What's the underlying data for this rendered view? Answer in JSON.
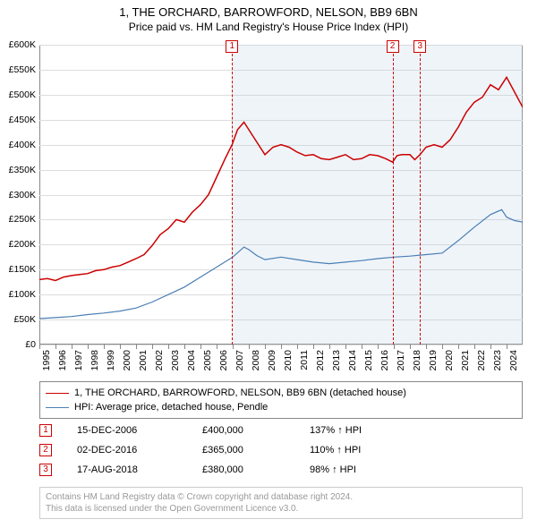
{
  "title": {
    "main": "1, THE ORCHARD, BARROWFORD, NELSON, BB9 6BN",
    "sub": "Price paid vs. HM Land Registry's House Price Index (HPI)"
  },
  "chart": {
    "type": "line",
    "background_color": "#ffffff",
    "grid_color": "#dddddd",
    "axis_color": "#888888",
    "x_start_year": 1995,
    "x_end_year": 2025,
    "ylim": [
      0,
      600000
    ],
    "ytick_step": 50000,
    "ytick_labels": [
      "£0",
      "£50K",
      "£100K",
      "£150K",
      "£200K",
      "£250K",
      "£300K",
      "£350K",
      "£400K",
      "£450K",
      "£500K",
      "£550K",
      "£600K"
    ],
    "xtick_years": [
      1995,
      1996,
      1997,
      1998,
      1999,
      2000,
      2001,
      2002,
      2003,
      2004,
      2005,
      2006,
      2007,
      2008,
      2009,
      2010,
      2011,
      2012,
      2013,
      2014,
      2015,
      2016,
      2017,
      2018,
      2019,
      2020,
      2021,
      2022,
      2023,
      2024
    ],
    "shade_color": "#b5cde3",
    "shade_start_year": 2006.96,
    "shade_end_year": 2025.3,
    "series": [
      {
        "name": "price_paid",
        "color": "#cc0000",
        "line_width": 1.5,
        "points": [
          [
            1995.0,
            130000
          ],
          [
            1995.5,
            132000
          ],
          [
            1996.0,
            128000
          ],
          [
            1996.5,
            135000
          ],
          [
            1997.0,
            138000
          ],
          [
            1997.5,
            140000
          ],
          [
            1998.0,
            142000
          ],
          [
            1998.5,
            148000
          ],
          [
            1999.0,
            150000
          ],
          [
            1999.5,
            155000
          ],
          [
            2000.0,
            158000
          ],
          [
            2000.5,
            165000
          ],
          [
            2001.0,
            172000
          ],
          [
            2001.5,
            180000
          ],
          [
            2002.0,
            198000
          ],
          [
            2002.5,
            220000
          ],
          [
            2003.0,
            232000
          ],
          [
            2003.5,
            250000
          ],
          [
            2004.0,
            245000
          ],
          [
            2004.5,
            265000
          ],
          [
            2005.0,
            280000
          ],
          [
            2005.5,
            300000
          ],
          [
            2006.0,
            335000
          ],
          [
            2006.5,
            370000
          ],
          [
            2006.96,
            400000
          ],
          [
            2007.3,
            430000
          ],
          [
            2007.7,
            445000
          ],
          [
            2008.0,
            430000
          ],
          [
            2008.5,
            405000
          ],
          [
            2009.0,
            380000
          ],
          [
            2009.5,
            395000
          ],
          [
            2010.0,
            400000
          ],
          [
            2010.5,
            395000
          ],
          [
            2011.0,
            385000
          ],
          [
            2011.5,
            378000
          ],
          [
            2012.0,
            380000
          ],
          [
            2012.5,
            372000
          ],
          [
            2013.0,
            370000
          ],
          [
            2013.5,
            375000
          ],
          [
            2014.0,
            380000
          ],
          [
            2014.5,
            370000
          ],
          [
            2015.0,
            372000
          ],
          [
            2015.5,
            380000
          ],
          [
            2016.0,
            378000
          ],
          [
            2016.5,
            372000
          ],
          [
            2016.92,
            365000
          ],
          [
            2017.2,
            378000
          ],
          [
            2017.5,
            380000
          ],
          [
            2018.0,
            380000
          ],
          [
            2018.3,
            370000
          ],
          [
            2018.63,
            380000
          ],
          [
            2019.0,
            395000
          ],
          [
            2019.5,
            400000
          ],
          [
            2020.0,
            395000
          ],
          [
            2020.5,
            410000
          ],
          [
            2021.0,
            435000
          ],
          [
            2021.5,
            465000
          ],
          [
            2022.0,
            485000
          ],
          [
            2022.5,
            495000
          ],
          [
            2023.0,
            520000
          ],
          [
            2023.5,
            510000
          ],
          [
            2024.0,
            535000
          ],
          [
            2024.5,
            505000
          ],
          [
            2025.0,
            475000
          ]
        ]
      },
      {
        "name": "hpi",
        "color": "#4a7fb5",
        "line_width": 1.2,
        "points": [
          [
            1995.0,
            52000
          ],
          [
            1996.0,
            54000
          ],
          [
            1997.0,
            56000
          ],
          [
            1998.0,
            60000
          ],
          [
            1999.0,
            63000
          ],
          [
            2000.0,
            67000
          ],
          [
            2001.0,
            73000
          ],
          [
            2002.0,
            85000
          ],
          [
            2003.0,
            100000
          ],
          [
            2004.0,
            115000
          ],
          [
            2005.0,
            135000
          ],
          [
            2006.0,
            155000
          ],
          [
            2007.0,
            175000
          ],
          [
            2007.7,
            195000
          ],
          [
            2008.0,
            190000
          ],
          [
            2008.5,
            178000
          ],
          [
            2009.0,
            170000
          ],
          [
            2010.0,
            175000
          ],
          [
            2011.0,
            170000
          ],
          [
            2012.0,
            165000
          ],
          [
            2013.0,
            162000
          ],
          [
            2014.0,
            165000
          ],
          [
            2015.0,
            168000
          ],
          [
            2016.0,
            172000
          ],
          [
            2017.0,
            175000
          ],
          [
            2018.0,
            177000
          ],
          [
            2019.0,
            180000
          ],
          [
            2020.0,
            183000
          ],
          [
            2021.0,
            208000
          ],
          [
            2022.0,
            235000
          ],
          [
            2023.0,
            260000
          ],
          [
            2023.7,
            270000
          ],
          [
            2024.0,
            255000
          ],
          [
            2024.5,
            248000
          ],
          [
            2025.0,
            245000
          ]
        ]
      }
    ],
    "vlines_color": "#cc0000",
    "sale_markers": [
      {
        "label": "1",
        "year": 2006.96
      },
      {
        "label": "2",
        "year": 2016.92
      },
      {
        "label": "3",
        "year": 2018.63
      }
    ]
  },
  "legend": {
    "items": [
      {
        "color": "#cc0000",
        "width": 1.8,
        "text": "1, THE ORCHARD, BARROWFORD, NELSON, BB9 6BN (detached house)"
      },
      {
        "color": "#4a7fb5",
        "width": 1.4,
        "text": "HPI: Average price, detached house, Pendle"
      }
    ]
  },
  "sales": [
    {
      "n": "1",
      "date": "15-DEC-2006",
      "price": "£400,000",
      "hpi": "137% ↑ HPI"
    },
    {
      "n": "2",
      "date": "02-DEC-2016",
      "price": "£365,000",
      "hpi": "110% ↑ HPI"
    },
    {
      "n": "3",
      "date": "17-AUG-2018",
      "price": "£380,000",
      "hpi": "98% ↑ HPI"
    }
  ],
  "footer": {
    "line1": "Contains HM Land Registry data © Crown copyright and database right 2024.",
    "line2": "This data is licensed under the Open Government Licence v3.0."
  }
}
